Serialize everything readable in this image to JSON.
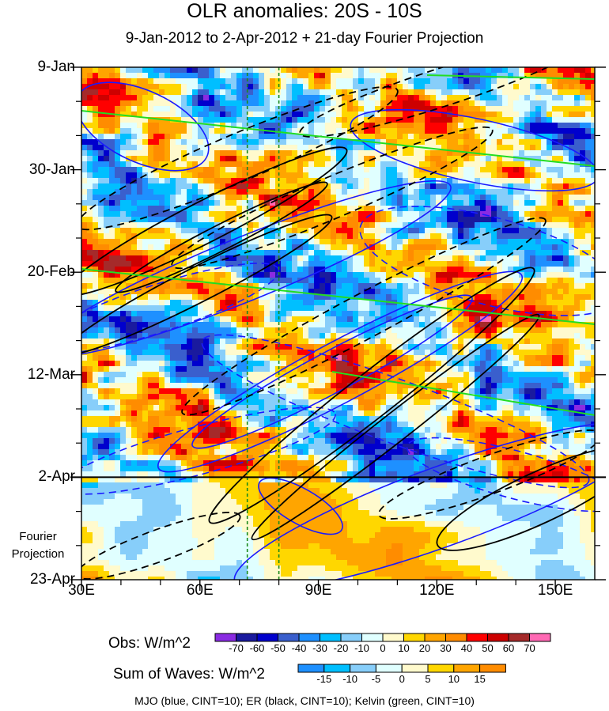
{
  "chart_data": {
    "type": "heatmap",
    "title": "OLR anomalies: 20S - 10S",
    "subtitle": "9-Jan-2012 to 2-Apr-2012 + 21-day Fourier Projection",
    "x_ticks": [
      {
        "value": 30,
        "label": "30E"
      },
      {
        "value": 60,
        "label": "60E"
      },
      {
        "value": 90,
        "label": "90E"
      },
      {
        "value": 120,
        "label": "120E"
      },
      {
        "value": 150,
        "label": "150E"
      }
    ],
    "xlim": [
      30,
      160
    ],
    "y_ticks": [
      {
        "day": 0,
        "label": "9-Jan"
      },
      {
        "day": 21,
        "label": "30-Jan"
      },
      {
        "day": 42,
        "label": "20-Feb"
      },
      {
        "day": 63,
        "label": "12-Mar"
      },
      {
        "day": 84,
        "label": "2-Apr"
      },
      {
        "day": 105,
        "label": "23-Apr"
      }
    ],
    "ylim_days": [
      0,
      105
    ],
    "observation_end_day": 84,
    "projection_label": "Fourier Projection",
    "reference_lines_lon": [
      72,
      80
    ],
    "obs_colorbar": {
      "title": "Obs: W/m^2",
      "levels": [
        -70,
        -60,
        -50,
        -40,
        -30,
        -20,
        -10,
        0,
        10,
        20,
        30,
        40,
        50,
        60,
        70
      ],
      "colors": [
        "#8a2be2",
        "#1a1a9e",
        "#0000cd",
        "#3a5fcd",
        "#1e90ff",
        "#00bfff",
        "#87cefa",
        "#e0ffff",
        "#fffacd",
        "#ffd700",
        "#ffa500",
        "#ff8c00",
        "#ff0000",
        "#cd0000",
        "#a52a2a",
        "#ff69b4"
      ]
    },
    "waves_colorbar": {
      "title": "Sum of Waves: W/m^2",
      "levels": [
        -15,
        -10,
        -5,
        0,
        5,
        10,
        15
      ],
      "colors": [
        "#1e90ff",
        "#00bfff",
        "#87cefa",
        "#e0ffff",
        "#fffacd",
        "#ffd700",
        "#ffa500",
        "#ff8c00"
      ]
    },
    "contours": [
      {
        "name": "MJO",
        "color": "blue",
        "cint": 10
      },
      {
        "name": "ER",
        "color": "black",
        "cint": 10
      },
      {
        "name": "Kelvin",
        "color": "green",
        "cint": 10
      }
    ],
    "footnote": "MJO (blue, CINT=10); ER (black, CINT=10); Kelvin (green, CINT=10)",
    "colors": {
      "mjo": "#1a1aff",
      "er": "#000000",
      "kelvin": "#22dd22"
    }
  }
}
